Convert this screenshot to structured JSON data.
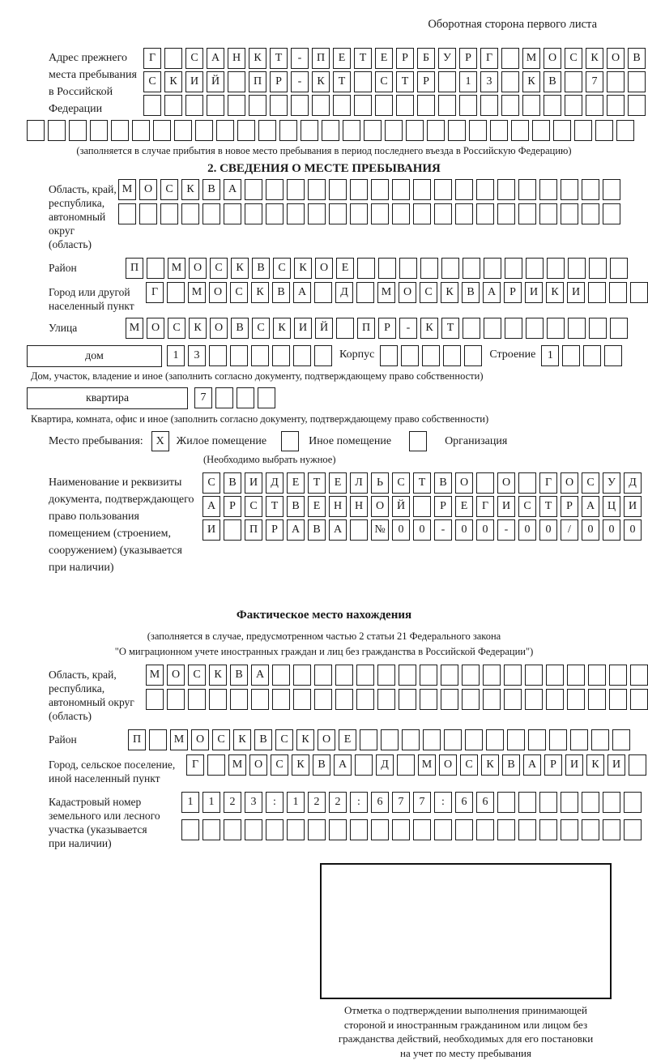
{
  "header": {
    "note": "Оборотная сторона первого листа"
  },
  "prev_address": {
    "label_lines": [
      "Адрес прежнего",
      "места пребывания",
      "в Российской",
      "Федерации"
    ],
    "rows": [
      {
        "text": "Г САНКТ-ПЕТЕРБУРГ МОСКОВ",
        "len": 24
      },
      {
        "text": "СКИЙ ПР-КТ СТР 13 КВ 7",
        "len": 24
      },
      {
        "text": "",
        "len": 24
      },
      {
        "text": "",
        "len": 29
      }
    ],
    "note": "(заполняется в случае прибытия в новое место пребывания в период последнего въезда в Российскую Федерацию)"
  },
  "section2": {
    "title": "2. СВЕДЕНИЯ О МЕСТЕ ПРЕБЫВАНИЯ",
    "region": {
      "label_lines": [
        "Область, край,",
        "республика,",
        "автономный",
        "округ (область)"
      ],
      "rows": [
        {
          "text": "МОСКВА",
          "len": 24
        },
        {
          "text": "",
          "len": 24
        }
      ]
    },
    "district": {
      "label": "Район",
      "row": {
        "text": "П МОСКВСКОЕ",
        "len": 24
      }
    },
    "city": {
      "label_lines": [
        "Город или другой",
        "населенный пункт"
      ],
      "row": {
        "text": "Г МОСКВА Д МОСКВАРИКИ",
        "len": 24
      }
    },
    "street": {
      "label": "Улица",
      "row": {
        "text": "МОСКОВСКИЙ ПР-КТ",
        "len": 24
      }
    },
    "house": {
      "box_label": "дом",
      "cells": {
        "text": "13",
        "len": 8
      },
      "korpus_label": "Корпус",
      "korpus_cells": {
        "text": "",
        "len": 5
      },
      "stroenie_label": "Строение",
      "stroenie_cells": {
        "text": "1",
        "len": 4
      },
      "note": "Дом, участок, владение и иное (заполнить согласно документу, подтверждающему право собственности)"
    },
    "apartment": {
      "box_label": "квартира",
      "cells": {
        "text": "7",
        "len": 4
      },
      "note": "Квартира, комната, офис и иное (заполнить согласно документу, подтверждающему право собственности)"
    },
    "stay": {
      "label": "Место пребывания:",
      "options": [
        {
          "label": "Жилое помещение",
          "checked": "X"
        },
        {
          "label": "Иное помещение",
          "checked": ""
        },
        {
          "label": "Организация",
          "checked": ""
        }
      ],
      "note": "(Необходимо выбрать нужное)"
    },
    "document": {
      "label_lines": [
        "Наименование и реквизиты",
        "документа, подтверждающего",
        "право пользования",
        "помещением (строением,",
        "сооружением) (указывается",
        "при наличии)"
      ],
      "rows": [
        {
          "text": "СВИДЕТЕЛЬСТВО О ГОСУД",
          "len": 21
        },
        {
          "text": "АРСТВЕННОЙ РЕГИСТРАЦИ",
          "len": 21
        },
        {
          "text": "И ПРАВА №00-00-00/000",
          "len": 21
        }
      ]
    }
  },
  "actual": {
    "title": "Фактическое место нахождения",
    "note_lines": [
      "(заполняется в случае, предусмотренном частью 2 статьи 21 Федерального закона",
      "\"О миграционном учете иностранных граждан и лиц без гражданства в Российской Федерации\")"
    ],
    "region": {
      "label_lines": [
        "Область, край,",
        "республика,",
        "автономный округ",
        "(область)"
      ],
      "rows": [
        {
          "text": "МОСКВА",
          "len": 24
        },
        {
          "text": "",
          "len": 24
        }
      ]
    },
    "district": {
      "label": "Район",
      "row": {
        "text": "П МОСКВСКОЕ",
        "len": 24
      }
    },
    "city": {
      "label_lines": [
        "Город, сельское поселение,",
        "иной населенный пункт"
      ],
      "row": {
        "text": "Г МОСКВА Д МОСКВАРИКИ",
        "len": 22
      }
    },
    "cadastral": {
      "label_lines": [
        "Кадастровый номер",
        "земельного или лесного",
        "участка (указывается",
        "при наличии)"
      ],
      "rows": [
        {
          "text": "1123:122:677:66",
          "len": 22
        },
        {
          "text": "",
          "len": 22
        }
      ]
    },
    "stamp_caption_lines": [
      "Отметка о подтверждении выполнения принимающей",
      "стороной и иностранным гражданином или лицом без",
      "гражданства действий, необходимых для его постановки",
      "на учет по месту пребывания"
    ]
  }
}
